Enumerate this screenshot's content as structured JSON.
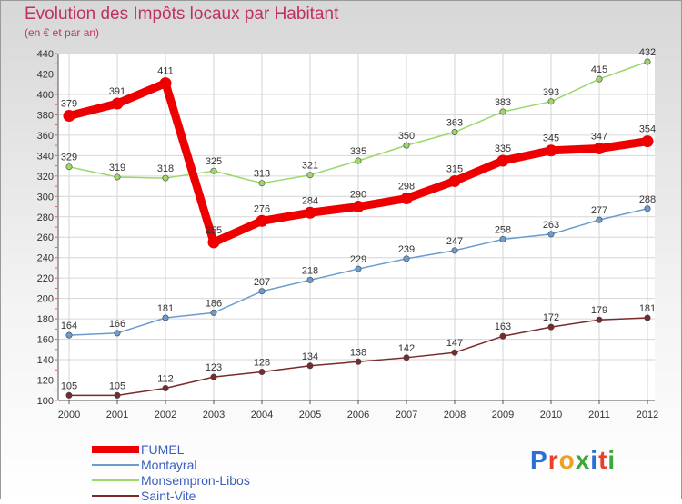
{
  "title": "Evolution des Impôts locaux par Habitant",
  "subtitle": "(en € et par an)",
  "brand": "Proxiti",
  "chart_data": {
    "type": "line",
    "title": "Evolution des Impôts locaux par Habitant",
    "subtitle": "(en € et par an)",
    "xlabel": "",
    "ylabel": "",
    "x": [
      "2000",
      "2001",
      "2002",
      "2003",
      "2004",
      "2005",
      "2006",
      "2007",
      "2008",
      "2009",
      "2010",
      "2011",
      "2012"
    ],
    "ylim": [
      100,
      440
    ],
    "yticks": [
      100,
      120,
      140,
      160,
      180,
      200,
      220,
      240,
      260,
      280,
      300,
      320,
      340,
      360,
      380,
      400,
      420,
      440
    ],
    "grid": true,
    "legend_position": "bottom-left",
    "series": [
      {
        "name": "FUMEL",
        "color": "#ee0000",
        "values": [
          379,
          391,
          411,
          255,
          276,
          284,
          290,
          298,
          315,
          335,
          345,
          347,
          354
        ]
      },
      {
        "name": "Montayral",
        "color": "#6a9cd0",
        "values": [
          164,
          166,
          181,
          186,
          207,
          218,
          229,
          239,
          247,
          258,
          263,
          277,
          288
        ]
      },
      {
        "name": "Monsempron-Libos",
        "color": "#9ad86a",
        "values": [
          329,
          319,
          318,
          325,
          313,
          321,
          335,
          350,
          363,
          383,
          393,
          415,
          432
        ]
      },
      {
        "name": "Saint-Vite",
        "color": "#7a2a2a",
        "values": [
          105,
          105,
          112,
          123,
          128,
          134,
          138,
          142,
          147,
          163,
          172,
          179,
          181
        ]
      }
    ]
  }
}
